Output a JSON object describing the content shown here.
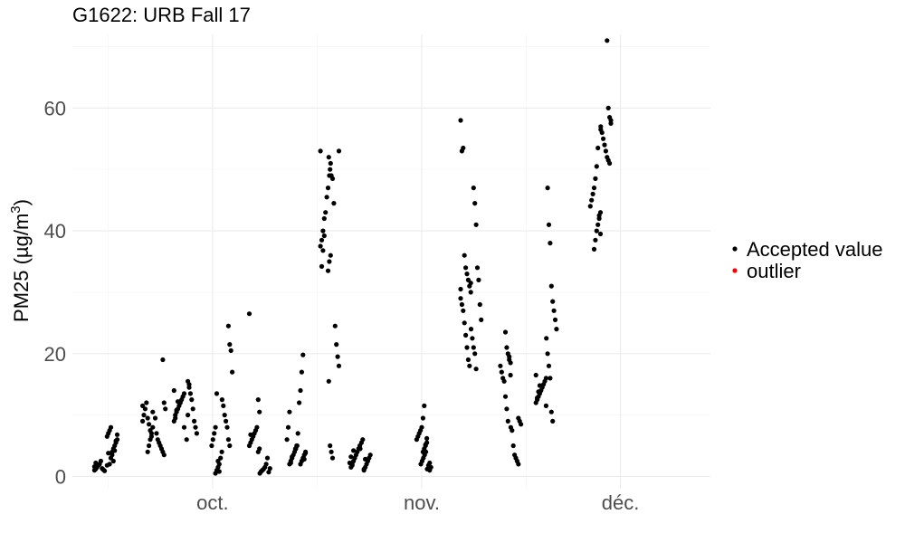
{
  "chart_data": {
    "type": "scatter",
    "title": "G1622: URB Fall 17",
    "ylabel_main": "PM25 (",
    "ylabel_unit": "µg/m",
    "ylabel_exp": "3",
    "ylabel_close": ")",
    "xlabel": "",
    "ylim": [
      -2,
      72
    ],
    "yticks": [
      0,
      20,
      40,
      60
    ],
    "ytick_labels": [
      "0",
      "20",
      "40",
      "60"
    ],
    "xlim_days": [
      -6.7,
      23.8
    ],
    "xticks": [
      {
        "label": "oct.",
        "day": 0
      },
      {
        "label": "nov.",
        "day": 10
      },
      {
        "label": "déc.",
        "day": 19.5
      }
    ],
    "x_minor_days": [
      -5,
      5,
      15
    ],
    "legend": [
      {
        "label": "Accepted value",
        "color": "#000000"
      },
      {
        "label": "outlier",
        "color": "#ff0000"
      }
    ],
    "point_color": "#000000",
    "series": [
      {
        "name": "Accepted value",
        "groups": [
          {
            "day": -5.4,
            "values": [
              1.0,
              1.2,
              1.5,
              1.8,
              2.0,
              2.5,
              1.3,
              1.1,
              0.9,
              1.6,
              2.2
            ]
          },
          {
            "day": -4.8,
            "values": [
              2.0,
              3.0,
              4.0,
              4.5,
              5.0,
              5.5,
              6.0,
              6.5,
              7.0,
              7.5,
              8.0,
              3.5,
              2.5,
              4.2,
              5.8,
              6.8,
              1.8,
              3.8
            ]
          },
          {
            "day": -3.1,
            "values": [
              4.0,
              5.0,
              6.0,
              7.0,
              8.0,
              9.0,
              10.0,
              11.0,
              12.0,
              9.5,
              8.5,
              7.5,
              6.5,
              10.5,
              11.5
            ]
          },
          {
            "day": -2.5,
            "values": [
              19.0,
              12.0,
              11.0,
              9.5,
              7.0,
              6.0,
              5.5,
              5.0,
              4.5,
              4.0,
              3.5
            ]
          },
          {
            "day": -1.6,
            "values": [
              8.0,
              9.0,
              10.0,
              10.5,
              11.0,
              11.5,
              12.0,
              12.5,
              13.0,
              13.5,
              14.0,
              9.5,
              10.8,
              12.2
            ]
          },
          {
            "day": -1.0,
            "values": [
              15.5,
              15.0,
              13.5,
              12.5,
              11.0,
              9.0,
              8.0,
              7.0,
              6.0,
              10.0,
              14.5
            ]
          },
          {
            "day": 0.2,
            "values": [
              0.5,
              1.0,
              1.5,
              2.0,
              3.0,
              4.0,
              5.0,
              6.0,
              7.0,
              8.0,
              13.5,
              2.5,
              0.8
            ]
          },
          {
            "day": 0.7,
            "values": [
              24.5,
              21.5,
              20.5,
              17.0,
              12.5,
              11.5,
              10.0,
              9.0,
              8.0,
              6.0,
              5.0
            ]
          },
          {
            "day": 2.0,
            "values": [
              4.0,
              4.5,
              5.0,
              5.5,
              6.0,
              6.5,
              7.0,
              7.5,
              8.0,
              12.5,
              10.5,
              26.5,
              6.8
            ]
          },
          {
            "day": 2.5,
            "values": [
              0.5,
              0.8,
              1.0,
              1.2,
              1.5,
              2.0,
              3.0,
              0.7,
              1.3
            ]
          },
          {
            "day": 3.8,
            "values": [
              2.0,
              2.5,
              3.0,
              3.5,
              4.0,
              4.5,
              5.0,
              6.0,
              8.0,
              10.5,
              2.2,
              3.2
            ]
          },
          {
            "day": 4.2,
            "values": [
              2.0,
              2.5,
              3.0,
              3.5,
              4.0,
              4.5,
              5.0,
              7.0,
              12.0,
              14.0,
              17.0,
              19.8,
              2.8,
              3.8
            ]
          },
          {
            "day": 5.4,
            "values": [
              33.5,
              35.0,
              36.0,
              37.5,
              38.5,
              40.0,
              42.0,
              43.0,
              45.5,
              47.0,
              49.0,
              51.0,
              53.0,
              34.2,
              36.8,
              39.2
            ]
          },
          {
            "day": 5.8,
            "values": [
              53.0,
              52.0,
              50.0,
              49.0,
              48.5,
              44.5,
              24.5,
              21.5,
              19.5,
              18.0,
              15.5,
              5.0,
              4.0,
              3.0
            ]
          },
          {
            "day": 6.8,
            "values": [
              1.5,
              2.0,
              2.5,
              3.0,
              3.5,
              4.0,
              4.5,
              5.0,
              2.2,
              3.2,
              1.8,
              4.2
            ]
          },
          {
            "day": 7.3,
            "values": [
              1.0,
              1.5,
              2.0,
              2.5,
              3.0,
              3.5,
              4.5,
              5.5,
              6.0,
              1.2,
              2.8
            ]
          },
          {
            "day": 10.0,
            "values": [
              4.0,
              4.5,
              5.0,
              5.5,
              6.0,
              6.5,
              7.0,
              7.5,
              8.0,
              9.5,
              11.5,
              5.2,
              6.2
            ]
          },
          {
            "day": 10.2,
            "values": [
              1.0,
              1.5,
              2.0,
              2.5,
              3.0,
              3.5,
              4.0,
              1.2,
              1.8,
              2.2
            ]
          },
          {
            "day": 12.1,
            "values": [
              58.0,
              53.0,
              53.5,
              36.0,
              34.0,
              33.0,
              32.0,
              31.0,
              30.0,
              29.0,
              28.0,
              27.0,
              25.0,
              23.0,
              21.0,
              19.0,
              18.0,
              31.5,
              30.5
            ]
          },
          {
            "day": 12.6,
            "values": [
              47.0,
              44.5,
              41.0,
              34.0,
              32.0,
              28.0,
              25.5,
              24.0,
              22.5,
              21.0,
              20.0,
              17.5
            ]
          },
          {
            "day": 14.0,
            "values": [
              23.5,
              21.0,
              20.0,
              19.5,
              18.5,
              18.0,
              17.0,
              16.0,
              15.5,
              13.0,
              11.0,
              9.0,
              19.0,
              16.5
            ]
          },
          {
            "day": 14.5,
            "values": [
              9.5,
              9.0,
              8.5,
              8.0,
              7.5,
              5.0,
              3.5,
              3.0,
              2.5,
              2.0
            ]
          },
          {
            "day": 15.7,
            "values": [
              11.5,
              12.0,
              12.5,
              13.0,
              13.5,
              14.0,
              14.5,
              15.0,
              15.5,
              16.0,
              16.5,
              12.8,
              13.8,
              14.8
            ]
          },
          {
            "day": 16.2,
            "values": [
              47.0,
              41.0,
              38.0,
              31.0,
              28.5,
              27.0,
              25.5,
              24.0,
              22.5,
              20.0,
              18.0,
              16.0,
              10.5,
              9.0
            ]
          },
          {
            "day": 18.3,
            "values": [
              37.0,
              38.5,
              40.0,
              41.0,
              42.0,
              43.0,
              44.0,
              45.0,
              46.0,
              47.0,
              48.5,
              50.5,
              53.5,
              42.5,
              39.5
            ]
          },
          {
            "day": 18.8,
            "values": [
              71.0,
              60.0,
              58.5,
              57.5,
              57.0,
              56.0,
              55.0,
              54.0,
              53.0,
              52.0,
              51.5,
              51.0,
              58.0,
              56.5
            ]
          }
        ]
      },
      {
        "name": "outlier",
        "groups": []
      }
    ]
  }
}
